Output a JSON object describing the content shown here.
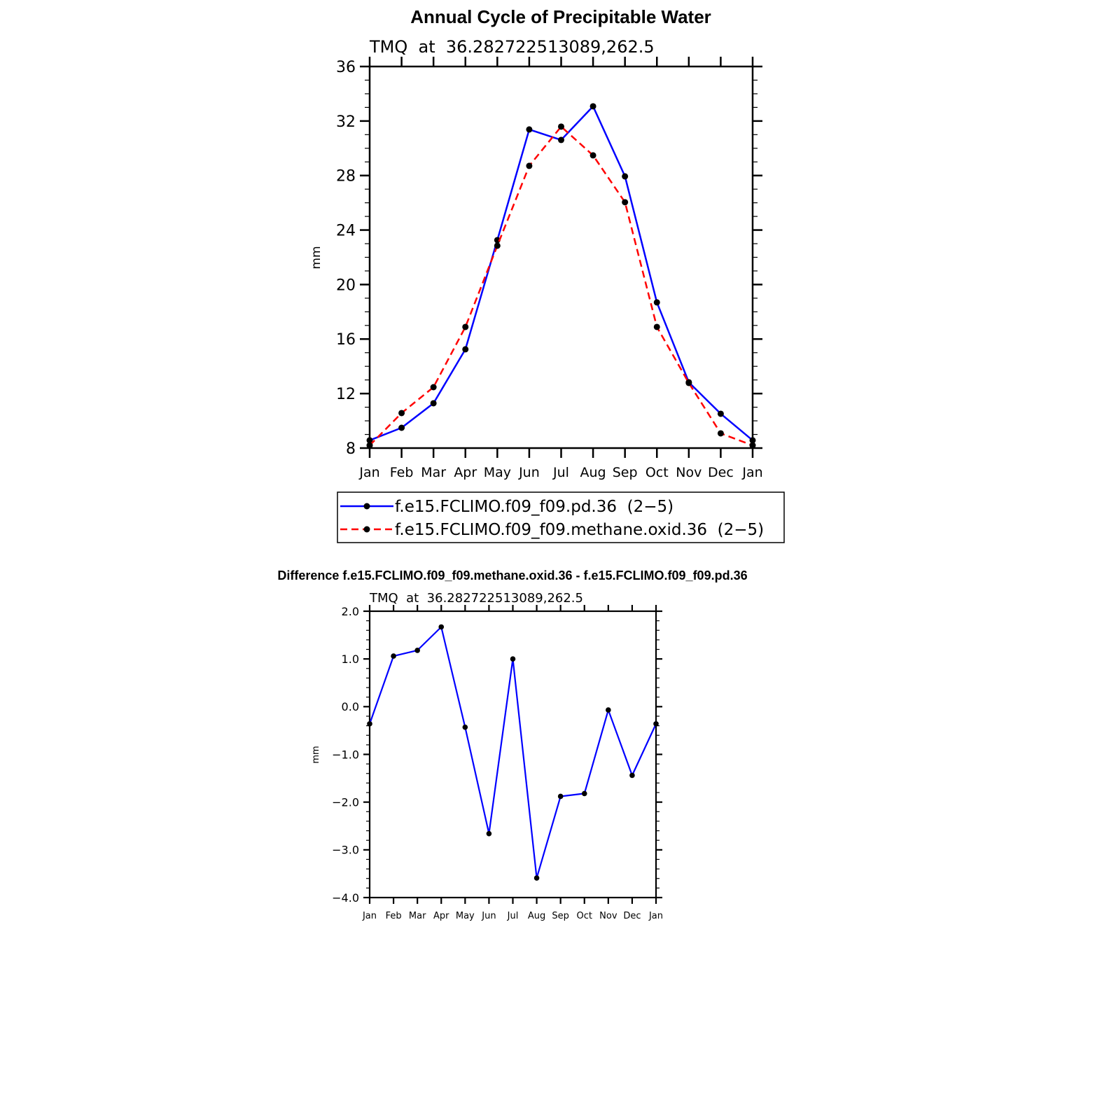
{
  "chart_data": [
    {
      "type": "line",
      "title": "Annual Cycle of Precipitable Water",
      "subtitle": "TMQ  at  36.282722513089,262.5",
      "xlabel": "",
      "ylabel": "mm",
      "ylim": [
        8,
        36
      ],
      "yticks": [
        "8",
        "12",
        "16",
        "20",
        "24",
        "28",
        "32",
        "36"
      ],
      "categories": [
        "Jan",
        "Feb",
        "Mar",
        "Apr",
        "May",
        "Jun",
        "Jul",
        "Aug",
        "Sep",
        "Oct",
        "Nov",
        "Dec",
        "Jan"
      ],
      "legend_placement": "below",
      "series": [
        {
          "name": "f.e15.FCLIMO.f09_f09.pd.36  (2−5)",
          "color": "#0000ff",
          "dash": "solid",
          "values": [
            8.57,
            9.49,
            11.29,
            15.25,
            23.26,
            31.38,
            30.61,
            33.08,
            27.94,
            18.69,
            12.83,
            10.52,
            8.57
          ]
        },
        {
          "name": "f.e15.FCLIMO.f09_f09.methane.oxid.36  (2−5)",
          "color": "#ff0000",
          "dash": "dashed",
          "values": [
            8.2,
            10.57,
            12.47,
            16.89,
            22.85,
            28.71,
            31.59,
            29.48,
            26.04,
            16.89,
            12.78,
            9.08,
            8.2
          ]
        }
      ]
    },
    {
      "type": "line",
      "title": "Difference f.e15.FCLIMO.f09_f09.methane.oxid.36 - f.e15.FCLIMO.f09_f09.pd.36",
      "subtitle": "TMQ  at  36.282722513089,262.5",
      "xlabel": "",
      "ylabel": "mm",
      "ylim": [
        -4,
        2
      ],
      "yticks": [
        "−4.0",
        "−3.0",
        "−2.0",
        "−1.0",
        "0.0",
        "1.0",
        "2.0"
      ],
      "categories": [
        "Jan",
        "Feb",
        "Mar",
        "Apr",
        "May",
        "Jun",
        "Jul",
        "Aug",
        "Sep",
        "Oct",
        "Nov",
        "Dec",
        "Jan"
      ],
      "series": [
        {
          "name": "difference",
          "color": "#0000ff",
          "dash": "solid",
          "values": [
            -0.36,
            1.06,
            1.18,
            1.67,
            -0.43,
            -2.66,
            1.0,
            -3.59,
            -1.88,
            -1.82,
            -0.07,
            -1.44,
            -0.36
          ]
        }
      ]
    }
  ]
}
